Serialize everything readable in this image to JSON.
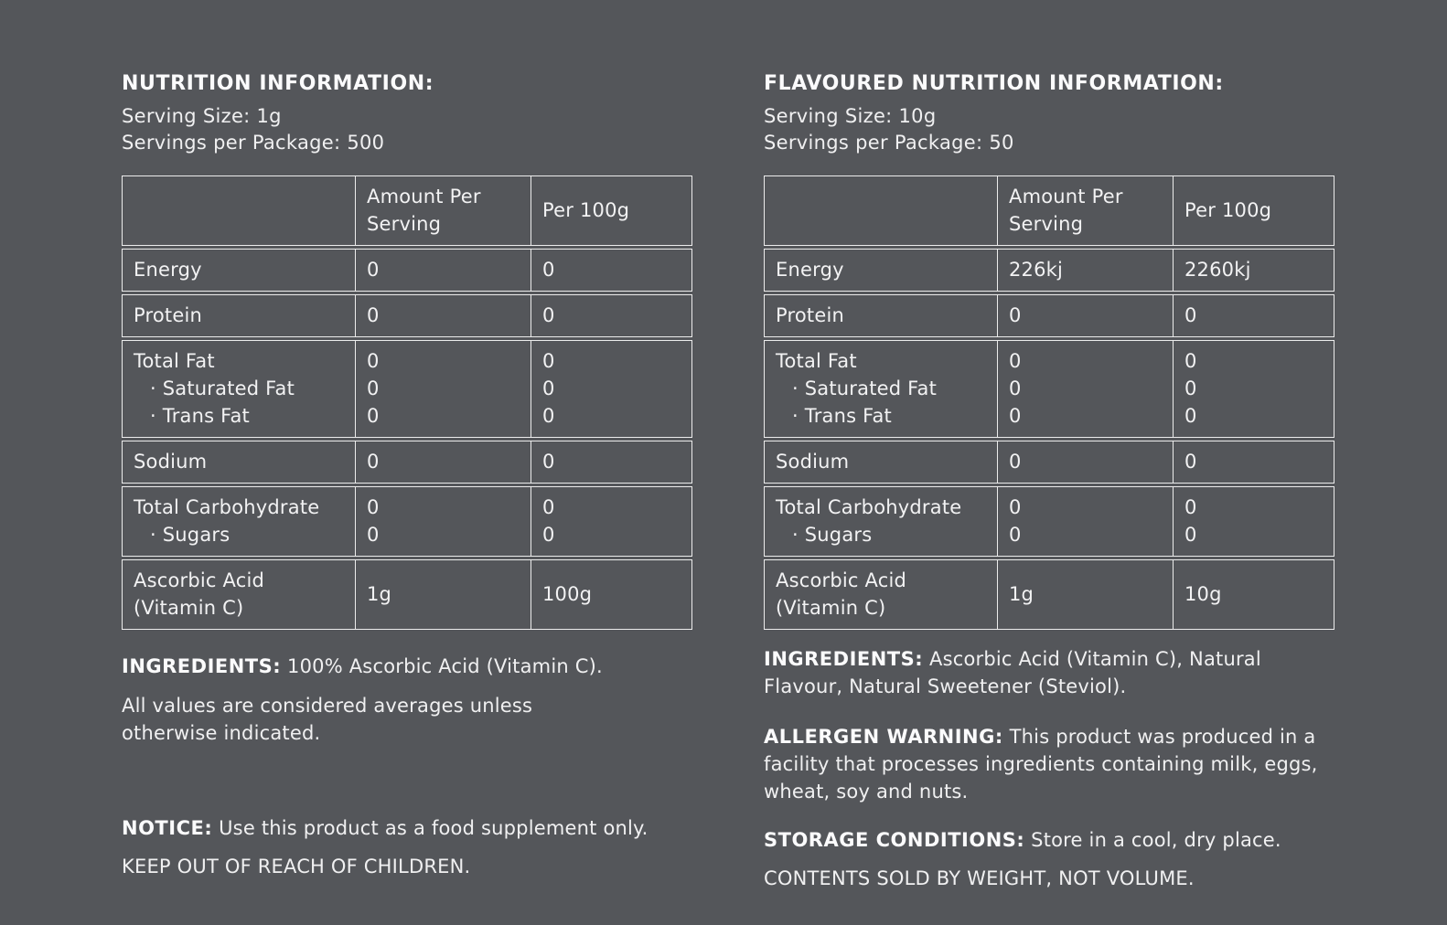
{
  "colors": {
    "background": "#54565a",
    "text": "#f2f2f3",
    "border": "#ececec"
  },
  "left_panel": {
    "title": "NUTRITION INFORMATION:",
    "serving_size": "Serving Size: 1g",
    "servings_per_package": "Servings per Package: 500",
    "table": {
      "headers": {
        "amount": "Amount Per Serving",
        "per100": "Per 100g"
      },
      "rows": [
        {
          "label": [
            "Energy"
          ],
          "amount": [
            "0"
          ],
          "per100": [
            "0"
          ]
        },
        {
          "label": [
            "Protein"
          ],
          "amount": [
            "0"
          ],
          "per100": [
            "0"
          ]
        },
        {
          "label": [
            "Total Fat",
            "· Saturated Fat",
            "· Trans Fat"
          ],
          "amount": [
            "0",
            "0",
            "0"
          ],
          "per100": [
            "0",
            "0",
            "0"
          ]
        },
        {
          "label": [
            "Sodium"
          ],
          "amount": [
            "0"
          ],
          "per100": [
            "0"
          ]
        },
        {
          "label": [
            "Total Carbohydrate",
            "· Sugars"
          ],
          "amount": [
            "0",
            "0"
          ],
          "per100": [
            "0",
            "0"
          ]
        },
        {
          "label": [
            "Ascorbic Acid",
            "(Vitamin C)"
          ],
          "amount": [
            "1g"
          ],
          "per100": [
            "100g"
          ]
        }
      ]
    },
    "ingredients_label": "INGREDIENTS:",
    "ingredients_text": " 100% Ascorbic Acid (Vitamin C).",
    "averages_note": "All values are considered averages unless otherwise indicated.",
    "notice_label": "NOTICE:",
    "notice_text": " Use this product as a food supplement only.",
    "keep_out_note": "KEEP OUT OF REACH OF CHILDREN."
  },
  "right_panel": {
    "title": "FLAVOURED NUTRITION INFORMATION:",
    "serving_size": "Serving Size: 10g",
    "servings_per_package": "Servings per Package: 50",
    "table": {
      "headers": {
        "amount": "Amount Per Serving",
        "per100": "Per 100g"
      },
      "rows": [
        {
          "label": [
            "Energy"
          ],
          "amount": [
            "226kj"
          ],
          "per100": [
            "2260kj"
          ]
        },
        {
          "label": [
            "Protein"
          ],
          "amount": [
            "0"
          ],
          "per100": [
            "0"
          ]
        },
        {
          "label": [
            "Total Fat",
            "· Saturated Fat",
            "· Trans Fat"
          ],
          "amount": [
            "0",
            "0",
            "0"
          ],
          "per100": [
            "0",
            "0",
            "0"
          ]
        },
        {
          "label": [
            "Sodium"
          ],
          "amount": [
            "0"
          ],
          "per100": [
            "0"
          ]
        },
        {
          "label": [
            "Total Carbohydrate",
            "· Sugars"
          ],
          "amount": [
            "0",
            "0"
          ],
          "per100": [
            "0",
            "0"
          ]
        },
        {
          "label": [
            "Ascorbic Acid",
            "(Vitamin C)"
          ],
          "amount": [
            "1g"
          ],
          "per100": [
            "10g"
          ]
        }
      ]
    },
    "ingredients_label": "INGREDIENTS:",
    "ingredients_text": " Ascorbic Acid (Vitamin C), Natural Flavour, Natural Sweetener (Steviol).",
    "allergen_label": "ALLERGEN WARNING:",
    "allergen_text": " This product was produced in a facility that processes ingredients containing milk, eggs, wheat, soy and nuts.",
    "storage_label": "STORAGE CONDITIONS:",
    "storage_text": " Store in a cool, dry place.",
    "contents_note": "CONTENTS SOLD BY WEIGHT, NOT VOLUME."
  }
}
